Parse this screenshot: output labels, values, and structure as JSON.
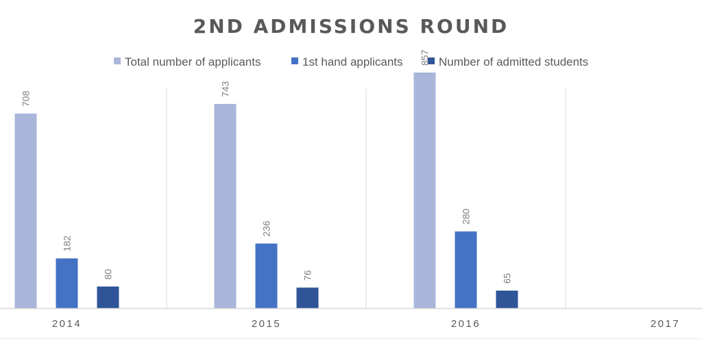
{
  "chart_data": {
    "type": "bar",
    "title": "2ND ADMISSIONS ROUND",
    "xlabel": "",
    "ylabel": "",
    "categories": [
      "2014",
      "2015",
      "2016",
      "2017"
    ],
    "series": [
      {
        "name": "Total number of applicants",
        "color": "#a9b6da",
        "values": [
          708,
          743,
          857,
          null
        ]
      },
      {
        "name": "1st hand applicants",
        "color": "#4473c5",
        "values": [
          182,
          236,
          280,
          null
        ]
      },
      {
        "name": "Number of admitted students",
        "color": "#2f5598",
        "values": [
          80,
          76,
          65,
          null
        ]
      }
    ],
    "ylim": [
      0,
      900
    ],
    "grid": "vertical category separators",
    "legend_position": "top",
    "data_labels": true
  }
}
